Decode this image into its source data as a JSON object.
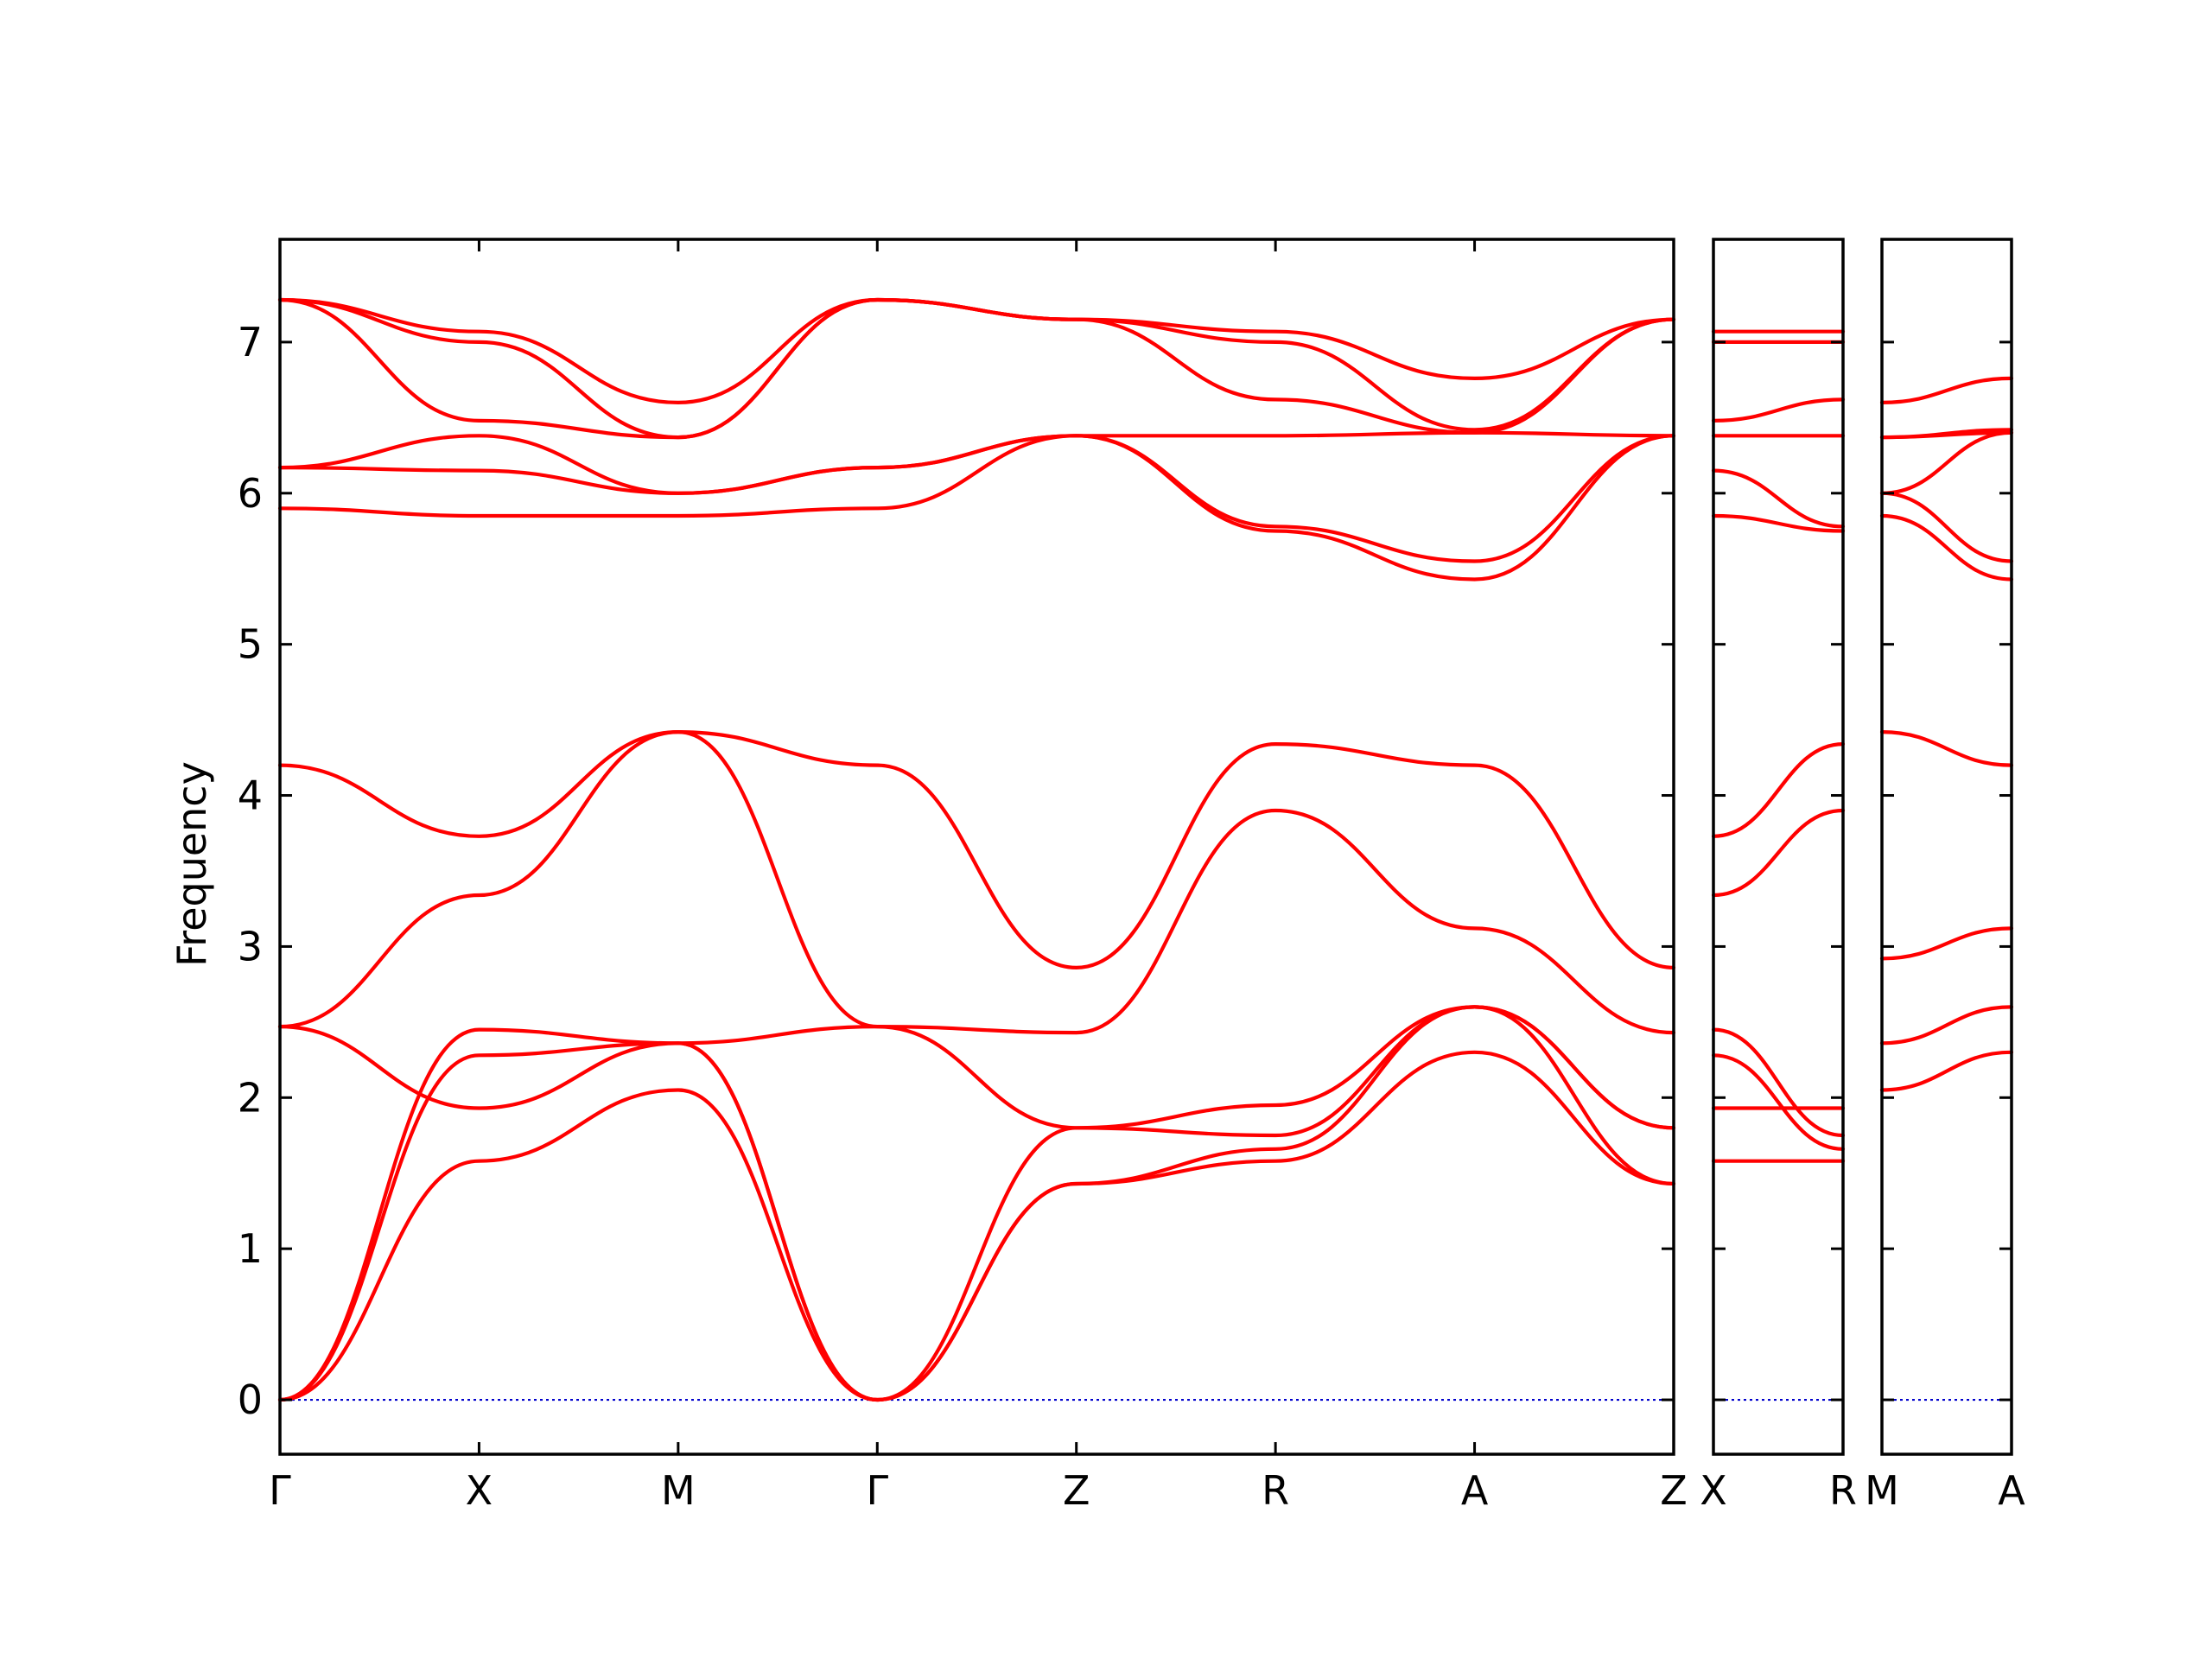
{
  "chart_data": {
    "type": "line",
    "ylabel": "Frequency",
    "xlabel": "",
    "title": "",
    "ylim": [
      -0.36,
      7.68
    ],
    "yticks": [
      0,
      1,
      2,
      3,
      4,
      5,
      6,
      7
    ],
    "grid": false,
    "legend": "none",
    "colors": {
      "bands": "#ff0000",
      "zero_line": "#0000cc",
      "frame": "#000000"
    },
    "panels": [
      {
        "path": [
          "Γ",
          "X",
          "M",
          "Γ",
          "Z",
          "R",
          "A",
          "Z"
        ],
        "x_labels": [
          "Γ",
          "X",
          "M",
          "Γ",
          "Z",
          "R",
          "A",
          "Z"
        ],
        "bands": [
          [
            0,
            1.58,
            2.05,
            0,
            1.43,
            1.58,
            2.3,
            1.43
          ],
          [
            0,
            2.28,
            2.36,
            0,
            1.43,
            1.66,
            2.6,
            1.43
          ],
          [
            0,
            2.45,
            2.36,
            0,
            1.8,
            1.95,
            2.6,
            1.8
          ],
          [
            2.47,
            1.93,
            2.36,
            2.47,
            1.8,
            1.75,
            2.6,
            1.8
          ],
          [
            2.47,
            3.34,
            4.42,
            2.47,
            2.43,
            3.9,
            3.12,
            2.43
          ],
          [
            4.2,
            3.73,
            4.42,
            4.2,
            2.86,
            4.34,
            4.2,
            2.86
          ],
          [
            5.9,
            5.85,
            5.85,
            5.9,
            6.38,
            5.75,
            5.43,
            6.38
          ],
          [
            6.17,
            6.15,
            6.0,
            6.17,
            6.38,
            5.78,
            5.55,
            6.38
          ],
          [
            6.17,
            6.38,
            6.0,
            6.17,
            6.38,
            6.38,
            6.4,
            6.38
          ],
          [
            7.28,
            6.48,
            6.37,
            7.28,
            7.15,
            6.62,
            6.4,
            7.15
          ],
          [
            7.28,
            7.0,
            6.37,
            7.28,
            7.15,
            7.0,
            6.42,
            7.15
          ],
          [
            7.28,
            7.07,
            6.6,
            7.28,
            7.15,
            7.07,
            6.76,
            7.15
          ]
        ]
      },
      {
        "path": [
          "X",
          "R"
        ],
        "x_labels": [
          "X",
          "R"
        ],
        "bands": [
          [
            1.58,
            1.58
          ],
          [
            1.93,
            1.93
          ],
          [
            2.28,
            1.66
          ],
          [
            2.45,
            1.75
          ],
          [
            3.34,
            3.9
          ],
          [
            3.73,
            4.34
          ],
          [
            5.85,
            5.75
          ],
          [
            6.15,
            5.78
          ],
          [
            6.38,
            6.38
          ],
          [
            6.48,
            6.62
          ],
          [
            7.0,
            7.0
          ],
          [
            7.07,
            7.07
          ]
        ]
      },
      {
        "path": [
          "M",
          "A"
        ],
        "x_labels": [
          "M",
          "A"
        ],
        "bands": [
          [
            2.05,
            2.3
          ],
          [
            2.36,
            2.6
          ],
          [
            2.92,
            3.12
          ],
          [
            4.42,
            4.2
          ],
          [
            5.85,
            5.43
          ],
          [
            6.0,
            5.55
          ],
          [
            6.0,
            6.4
          ],
          [
            6.37,
            6.4
          ],
          [
            6.37,
            6.42
          ],
          [
            6.6,
            6.76
          ]
        ]
      }
    ]
  }
}
